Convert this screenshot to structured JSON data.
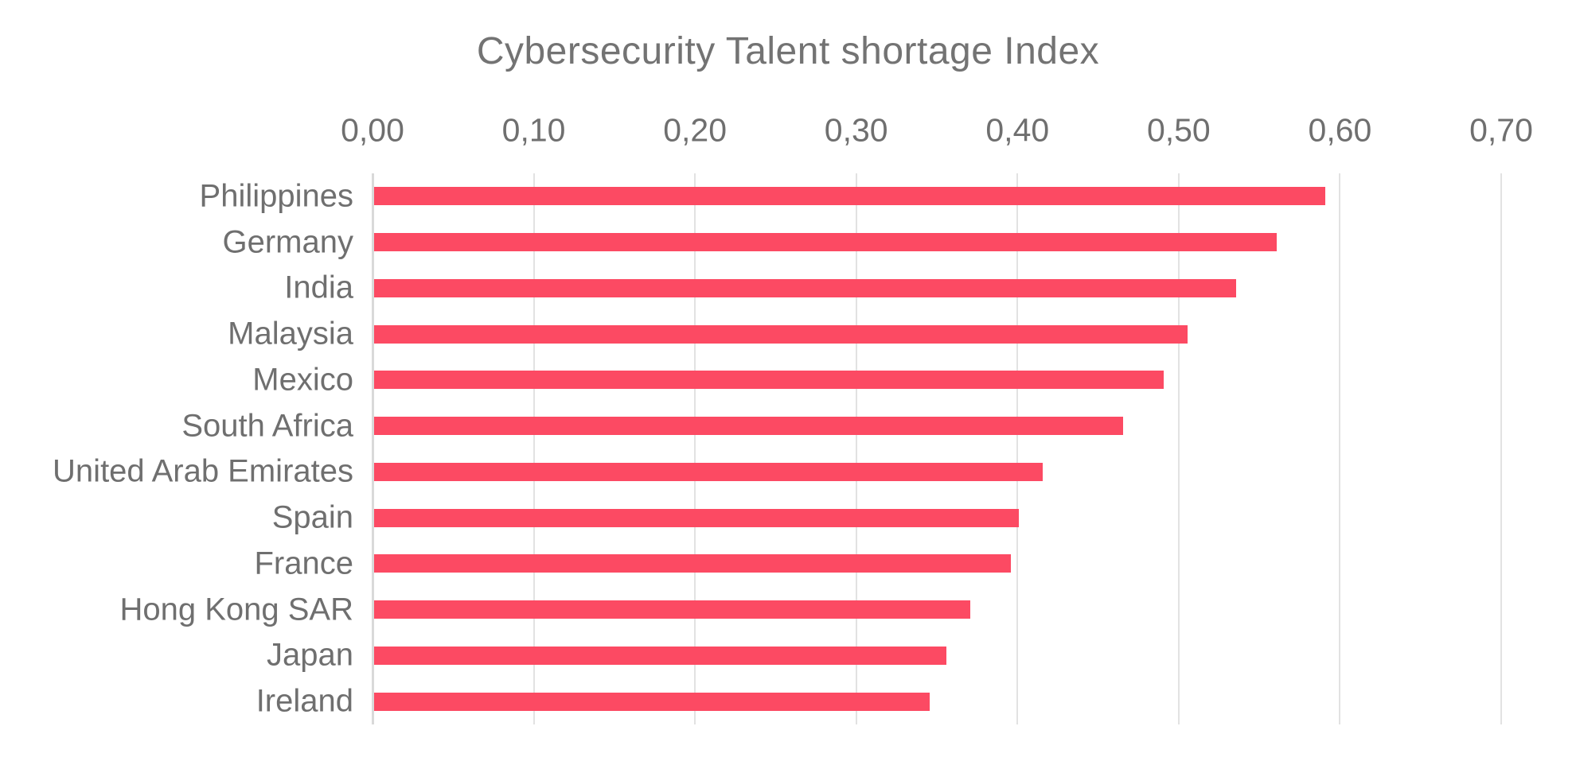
{
  "page": {
    "background": "#ffffff"
  },
  "chart_data": {
    "type": "bar",
    "orientation": "horizontal",
    "title": "Cybersecurity Talent shortage Index",
    "categories": [
      "Philippines",
      "Germany",
      "India",
      "Malaysia",
      "Mexico",
      "South Africa",
      "United Arab Emirates",
      "Spain",
      "France",
      "Hong Kong SAR",
      "Japan",
      "Ireland"
    ],
    "values": [
      0.59,
      0.56,
      0.535,
      0.505,
      0.49,
      0.465,
      0.415,
      0.4,
      0.395,
      0.37,
      0.355,
      0.345
    ],
    "xlabel": "",
    "ylabel": "",
    "xlim": [
      0,
      0.7
    ],
    "x_ticks": [
      0.0,
      0.1,
      0.2,
      0.3,
      0.4,
      0.5,
      0.6,
      0.7
    ],
    "x_tick_labels": [
      "0,00",
      "0,10",
      "0,20",
      "0,30",
      "0,40",
      "0,50",
      "0,60",
      "0,70"
    ],
    "tick_labels_position": "top",
    "grid": "vertical-gridlines-on",
    "legend": "none",
    "colors": {
      "bar": "#fc4a63",
      "gridline": "#e2e2e2",
      "axis_line": "#d9d9d9",
      "title_text": "#737373",
      "tick_text": "#6f6f6f",
      "category_text": "#6f6f6f"
    }
  }
}
